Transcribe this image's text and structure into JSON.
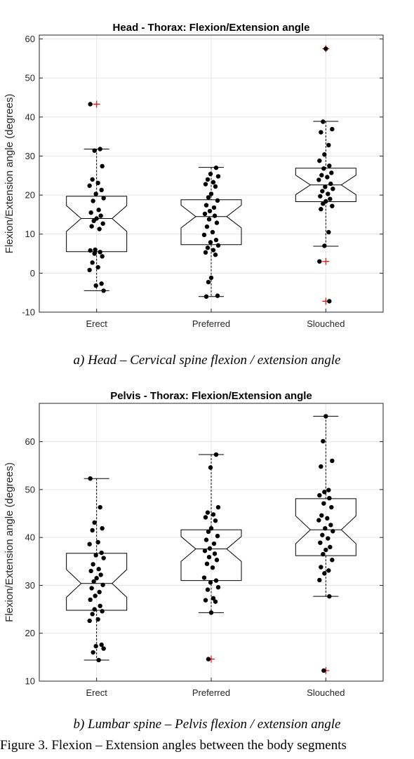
{
  "captions": {
    "a": "a) Head – Cervical spine flexion / extension angle",
    "b": "b) Lumbar spine – Pelvis flexion / extension angle",
    "figure": "Figure 3.   Flexion – Extension angles between the body segments"
  },
  "colors": {
    "points": "#000000",
    "outliers": "#ff0000",
    "box": "#000000",
    "grid": "#e6e6e6"
  },
  "chart_data": [
    {
      "type": "box",
      "title": "Head - Thorax: Flexion/Extension angle",
      "ylabel": "Flexion/Extension angle (degrees)",
      "categories": [
        "Erect",
        "Preferred",
        "Slouched"
      ],
      "ylim": [
        -10,
        61
      ],
      "yticks": [
        -10,
        0,
        10,
        20,
        30,
        40,
        50,
        60
      ],
      "grid": true,
      "notched": true,
      "boxes": [
        {
          "q1": 5.5,
          "median": 14,
          "q3": 19.7,
          "whisker_low": -4.5,
          "whisker_high": 31.8,
          "notch_low": 10.7,
          "notch_high": 17.3,
          "outliers": [
            43.3
          ]
        },
        {
          "q1": 7.3,
          "median": 14.5,
          "q3": 18.8,
          "whisker_low": -6,
          "whisker_high": 27.1,
          "notch_low": 11.6,
          "notch_high": 17.4,
          "outliers": []
        },
        {
          "q1": 18.3,
          "median": 22.6,
          "q3": 26.9,
          "whisker_low": 6.9,
          "whisker_high": 38.9,
          "notch_low": 20.1,
          "notch_high": 25.1,
          "outliers": [
            57.5,
            3,
            -7.2
          ]
        }
      ],
      "points": [
        [
          43.3,
          31.8,
          31.4,
          27.4,
          24,
          23.1,
          22.4,
          21.3,
          20.3,
          19.2,
          18.5,
          16.2,
          15.5,
          14.7,
          14,
          13.4,
          12.7,
          12,
          11.3,
          6,
          5.8,
          5.4,
          5,
          4.3,
          2.7,
          1.5,
          0.8,
          -2.7,
          -3.2,
          -4.5
        ],
        [
          27,
          25.4,
          24.8,
          24,
          23.3,
          22.8,
          22.2,
          20.3,
          19.4,
          18.6,
          17.4,
          16.8,
          15.9,
          15.2,
          14.7,
          13.8,
          12.9,
          11.9,
          10.5,
          9.8,
          8.5,
          7.9,
          7.1,
          6.5,
          5.9,
          5.3,
          4.7,
          -1.2,
          -2.3,
          -5.8,
          -6
        ],
        [
          57.5,
          38.8,
          36.9,
          36.1,
          32.8,
          30.4,
          28.8,
          27.5,
          26.8,
          25.7,
          25.1,
          24.6,
          23.9,
          22.9,
          22.1,
          21.6,
          21,
          20.3,
          19.7,
          19,
          18.4,
          17.8,
          17.2,
          16.4,
          10.5,
          7,
          3,
          -7.2
        ]
      ]
    },
    {
      "type": "box",
      "title": "Pelvis - Thorax: Flexion/Extension angle",
      "ylabel": "Flexion/Extension angle (degrees)",
      "categories": [
        "Erect",
        "Preferred",
        "Slouched"
      ],
      "ylim": [
        10,
        68
      ],
      "yticks": [
        10,
        20,
        30,
        40,
        50,
        60
      ],
      "grid": true,
      "notched": true,
      "boxes": [
        {
          "q1": 24.8,
          "median": 30.4,
          "q3": 36.7,
          "whisker_low": 14.4,
          "whisker_high": 52.3,
          "notch_low": 27.5,
          "notch_high": 33.3,
          "outliers": []
        },
        {
          "q1": 31,
          "median": 37.6,
          "q3": 41.6,
          "whisker_low": 24.3,
          "whisker_high": 57.3,
          "notch_low": 35,
          "notch_high": 40.2,
          "outliers": [
            14.6
          ]
        },
        {
          "q1": 36.2,
          "median": 41.6,
          "q3": 48.1,
          "whisker_low": 27.7,
          "whisker_high": 65.3,
          "notch_low": 38.7,
          "notch_high": 44.5,
          "outliers": [
            12.2
          ]
        }
      ],
      "points": [
        [
          52.3,
          46.3,
          43.1,
          41.9,
          41.5,
          39,
          38.6,
          36.8,
          36.3,
          35.7,
          34.4,
          33.4,
          33,
          32.2,
          31.5,
          30.8,
          30.1,
          29.4,
          28.6,
          27.8,
          27,
          25.7,
          25,
          24.6,
          24,
          22.9,
          22.6,
          17.6,
          17.3,
          16.8,
          16,
          14.4
        ],
        [
          57.3,
          54.6,
          46.3,
          45.2,
          44.8,
          44.2,
          43.5,
          41.9,
          41.2,
          40.3,
          39.5,
          38.7,
          37.7,
          37.2,
          36.6,
          35.9,
          35.3,
          34.5,
          33.7,
          31.6,
          31,
          30.6,
          29.6,
          29.1,
          27.3,
          26.9,
          26.6,
          24.3,
          14.6
        ],
        [
          65.3,
          60.1,
          56,
          54.8,
          49.9,
          49.5,
          48.8,
          48.2,
          47.1,
          46.3,
          44.6,
          44,
          43.6,
          42.6,
          41.9,
          41.3,
          40.5,
          39.8,
          38.9,
          38,
          37.4,
          36.5,
          35.3,
          33.8,
          33.1,
          32.5,
          31.1,
          27.7,
          12.2
        ]
      ]
    }
  ]
}
